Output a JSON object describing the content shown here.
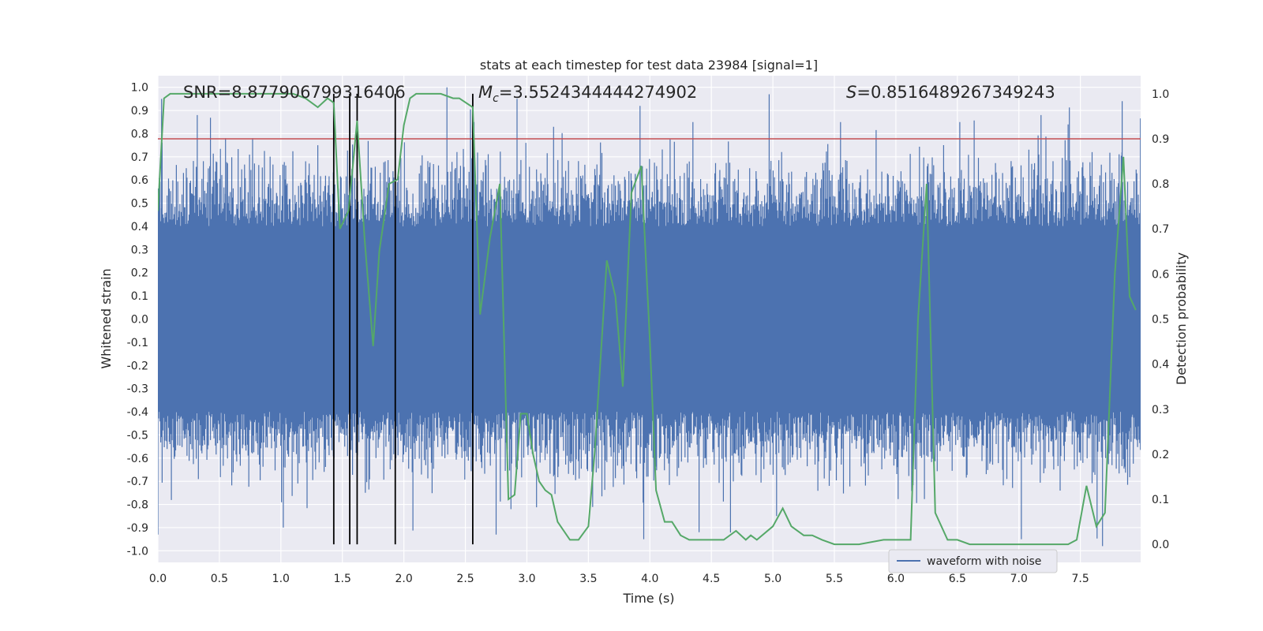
{
  "chart_data": {
    "type": "line",
    "title": "stats at each timestep for test data 23984 [signal=1]",
    "xlabel": "Time (s)",
    "ylabel": "Whitened strain",
    "ylabel_right": "Detection probability",
    "xlim": [
      0.0,
      7.99
    ],
    "ylim": [
      -1.05,
      1.05
    ],
    "ylim_right": [
      -0.04,
      1.04
    ],
    "x_ticks": [
      "0.0",
      "0.5",
      "1.0",
      "1.5",
      "2.0",
      "2.5",
      "3.0",
      "3.5",
      "4.0",
      "4.5",
      "5.0",
      "5.5",
      "6.0",
      "6.5",
      "7.0",
      "7.5"
    ],
    "y_ticks": [
      "1.0",
      "0.9",
      "0.8",
      "0.7",
      "0.6",
      "0.5",
      "0.4",
      "0.3",
      "0.2",
      "0.1",
      "0.0",
      "-0.1",
      "-0.2",
      "-0.3",
      "-0.4",
      "-0.5",
      "-0.6",
      "-0.7",
      "-0.8",
      "-0.9",
      "-1.0"
    ],
    "y_ticks_right": [
      "1.0",
      "0.9",
      "0.8",
      "0.7",
      "0.6",
      "0.5",
      "0.4",
      "0.3",
      "0.2",
      "0.1",
      "0.0"
    ],
    "annotations": {
      "snr": "SNR=8.877906799316406",
      "mc_symbol": "M",
      "mc_sub": "c",
      "mc_value": "=3.5524344444274902",
      "s_symbol": "S",
      "s_value": "=0.8516489267349243"
    },
    "threshold": 0.9,
    "event_lines_x": [
      1.43,
      1.56,
      1.62,
      1.93,
      2.56
    ],
    "legend": {
      "label": "waveform with noise",
      "position": "lower right"
    },
    "colors": {
      "waveform": "#4c72b0",
      "probability": "#55a868",
      "threshold": "#c44e52",
      "event_line": "#000000",
      "plot_bg": "#eaeaf2",
      "grid": "#ffffff"
    },
    "series": [
      {
        "name": "waveform with noise",
        "style": "dense-noise",
        "typical_amplitude": 0.4,
        "peak_spikes": [
          {
            "x": 0.03,
            "y": 0.95
          },
          {
            "x": 0.32,
            "y": 0.88
          },
          {
            "x": 0.55,
            "y": 0.78
          },
          {
            "x": 0.77,
            "y": 0.78
          },
          {
            "x": 1.3,
            "y": 0.75
          },
          {
            "x": 2.35,
            "y": 1.0
          },
          {
            "x": 2.57,
            "y": 0.85
          },
          {
            "x": 2.92,
            "y": 0.95
          },
          {
            "x": 3.92,
            "y": 0.92
          },
          {
            "x": 4.35,
            "y": 0.85
          },
          {
            "x": 4.97,
            "y": 0.97
          },
          {
            "x": 5.55,
            "y": 0.85
          },
          {
            "x": 6.52,
            "y": 0.85
          },
          {
            "x": 7.18,
            "y": 0.88
          },
          {
            "x": 7.4,
            "y": 0.84
          },
          {
            "x": 7.84,
            "y": 0.94
          }
        ],
        "trough_spikes": [
          {
            "x": 0.0,
            "y": -0.93
          },
          {
            "x": 1.02,
            "y": -0.9
          },
          {
            "x": 2.75,
            "y": -0.93
          },
          {
            "x": 3.95,
            "y": -0.95
          },
          {
            "x": 4.4,
            "y": -0.92
          },
          {
            "x": 5.03,
            "y": -0.85
          },
          {
            "x": 7.02,
            "y": -0.95
          },
          {
            "x": 7.68,
            "y": -0.98
          }
        ]
      },
      {
        "name": "detection probability",
        "axis": "right",
        "x": [
          0.0,
          0.05,
          0.1,
          0.15,
          0.3,
          0.5,
          0.8,
          1.0,
          1.1,
          1.2,
          1.25,
          1.3,
          1.38,
          1.43,
          1.48,
          1.55,
          1.62,
          1.68,
          1.75,
          1.8,
          1.88,
          1.95,
          2.0,
          2.05,
          2.1,
          2.2,
          2.3,
          2.4,
          2.45,
          2.56,
          2.62,
          2.7,
          2.78,
          2.85,
          2.9,
          2.95,
          3.0,
          3.05,
          3.1,
          3.15,
          3.2,
          3.25,
          3.35,
          3.42,
          3.5,
          3.55,
          3.65,
          3.72,
          3.78,
          3.85,
          3.93,
          4.0,
          4.05,
          4.12,
          4.18,
          4.25,
          4.32,
          4.45,
          4.55,
          4.6,
          4.7,
          4.78,
          4.82,
          4.87,
          5.0,
          5.08,
          5.15,
          5.25,
          5.32,
          5.4,
          5.5,
          5.7,
          5.9,
          6.0,
          6.05,
          6.12,
          6.18,
          6.25,
          6.32,
          6.42,
          6.5,
          6.6,
          6.8,
          7.0,
          7.2,
          7.4,
          7.47,
          7.55,
          7.63,
          7.7,
          7.78,
          7.85,
          7.9,
          7.95
        ],
        "values": [
          0.74,
          0.99,
          1.0,
          1.0,
          1.0,
          1.0,
          1.0,
          1.0,
          1.0,
          0.99,
          0.98,
          0.97,
          0.99,
          0.98,
          0.7,
          0.74,
          0.94,
          0.68,
          0.44,
          0.65,
          0.8,
          0.81,
          0.93,
          0.99,
          1.0,
          1.0,
          1.0,
          0.99,
          0.99,
          0.97,
          0.51,
          0.68,
          0.8,
          0.1,
          0.11,
          0.29,
          0.29,
          0.2,
          0.14,
          0.12,
          0.11,
          0.05,
          0.01,
          0.01,
          0.04,
          0.2,
          0.63,
          0.55,
          0.35,
          0.78,
          0.84,
          0.45,
          0.12,
          0.05,
          0.05,
          0.02,
          0.01,
          0.01,
          0.01,
          0.01,
          0.03,
          0.01,
          0.02,
          0.01,
          0.04,
          0.08,
          0.04,
          0.02,
          0.02,
          0.01,
          0.0,
          0.0,
          0.01,
          0.01,
          0.01,
          0.01,
          0.5,
          0.8,
          0.07,
          0.01,
          0.01,
          0.0,
          0.0,
          0.0,
          0.0,
          0.0,
          0.01,
          0.13,
          0.04,
          0.07,
          0.6,
          0.86,
          0.55,
          0.52
        ]
      }
    ]
  }
}
